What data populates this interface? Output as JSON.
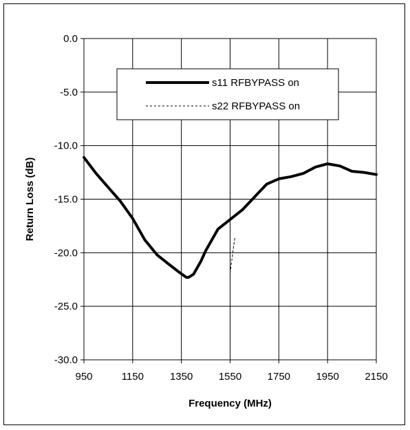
{
  "chart_data": {
    "type": "line",
    "title": "",
    "xlabel": "Frequency (MHz)",
    "ylabel": "Return Loss (dB)",
    "xlim": [
      950,
      2150
    ],
    "ylim": [
      -30.0,
      0.0
    ],
    "x_ticks": [
      950,
      1150,
      1350,
      1550,
      1750,
      1950,
      2150
    ],
    "x_tick_labels": [
      "950",
      "1150",
      "1350",
      "1550",
      "1750",
      "1950",
      "2150"
    ],
    "y_ticks": [
      0,
      -5,
      -10,
      -15,
      -20,
      -25,
      -30
    ],
    "y_tick_labels": [
      "0.0",
      "-5.0",
      "-10.0",
      "-15.0",
      "-20.0",
      "-25.0",
      "-30.0"
    ],
    "grid": true,
    "legend_position": "top-center",
    "series": [
      {
        "name": "s11 RFBYPASS on",
        "color": "#000000",
        "style": "solid",
        "x": [
          950,
          1000,
          1050,
          1100,
          1150,
          1200,
          1250,
          1300,
          1340,
          1370,
          1380,
          1400,
          1430,
          1450,
          1500,
          1550,
          1600,
          1650,
          1700,
          1750,
          1800,
          1850,
          1900,
          1950,
          2000,
          2050,
          2100,
          2150
        ],
        "y": [
          -11.1,
          -12.6,
          -13.9,
          -15.2,
          -16.8,
          -18.8,
          -20.2,
          -21.1,
          -21.8,
          -22.3,
          -22.3,
          -22.0,
          -20.8,
          -19.8,
          -17.8,
          -16.9,
          -16.0,
          -14.8,
          -13.6,
          -13.1,
          -12.9,
          -12.6,
          -12.0,
          -11.7,
          -11.9,
          -12.4,
          -12.5,
          -12.7
        ]
      },
      {
        "name": "s22 RFBYPASS on",
        "color": "#000000",
        "style": "dashed",
        "x": [
          1550,
          1555,
          1560,
          1565,
          1570
        ],
        "y": [
          -21.9,
          -21.0,
          -20.2,
          -19.3,
          -18.5
        ]
      }
    ]
  }
}
